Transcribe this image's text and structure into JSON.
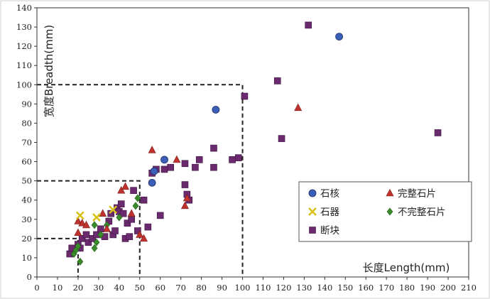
{
  "chart_data": {
    "type": "scatter",
    "title": "",
    "xlabel": "长度Length(mm)",
    "ylabel": "宽度Breadth(mm)",
    "xlim": [
      0,
      210
    ],
    "ylim": [
      0,
      140
    ],
    "x_ticks": [
      0,
      10,
      20,
      30,
      40,
      50,
      60,
      70,
      80,
      90,
      100,
      110,
      120,
      130,
      140,
      150,
      160,
      170,
      180,
      190,
      200,
      210
    ],
    "y_ticks": [
      0,
      10,
      20,
      30,
      40,
      50,
      60,
      70,
      80,
      90,
      100,
      110,
      120,
      130,
      140
    ],
    "grid": false,
    "legend_position": "lower-right",
    "reference_boxes": [
      {
        "x_max": 20,
        "y_max": 20
      },
      {
        "x_max": 50,
        "y_max": 50
      },
      {
        "x_max": 100,
        "y_max": 100
      }
    ],
    "series": [
      {
        "name": "石核",
        "marker": "circle",
        "color": "#3b5fb8",
        "points": [
          [
            87,
            87
          ],
          [
            147,
            125
          ],
          [
            56,
            49
          ],
          [
            62,
            61
          ],
          [
            57,
            55
          ]
        ]
      },
      {
        "name": "完整石片",
        "marker": "triangle",
        "color": "#c0322d",
        "points": [
          [
            20,
            29
          ],
          [
            22,
            28
          ],
          [
            24,
            27
          ],
          [
            20,
            23
          ],
          [
            32,
            33
          ],
          [
            34,
            25
          ],
          [
            41,
            45
          ],
          [
            43,
            47
          ],
          [
            46,
            33
          ],
          [
            50,
            22
          ],
          [
            52,
            20
          ],
          [
            56,
            66
          ],
          [
            68,
            61
          ],
          [
            72,
            37
          ],
          [
            73,
            41
          ],
          [
            127,
            88
          ]
        ]
      },
      {
        "name": "石器",
        "marker": "x",
        "color": "#d8c21a",
        "points": [
          [
            21,
            32
          ],
          [
            29,
            31
          ],
          [
            37,
            35
          ]
        ]
      },
      {
        "name": "不完整石片",
        "marker": "diamond",
        "color": "#3a8c2a",
        "points": [
          [
            18,
            12
          ],
          [
            19,
            14
          ],
          [
            20,
            16
          ],
          [
            21,
            8
          ],
          [
            28,
            15
          ],
          [
            28,
            27
          ],
          [
            29,
            18
          ],
          [
            31,
            22
          ],
          [
            34,
            27
          ],
          [
            40,
            31
          ],
          [
            48,
            37
          ],
          [
            49,
            41
          ]
        ]
      },
      {
        "name": "断块",
        "marker": "square",
        "color": "#6b2a6e",
        "points": [
          [
            16,
            12
          ],
          [
            17,
            15
          ],
          [
            20,
            17
          ],
          [
            21,
            15
          ],
          [
            22,
            20
          ],
          [
            24,
            22
          ],
          [
            25,
            18
          ],
          [
            27,
            20
          ],
          [
            29,
            22
          ],
          [
            31,
            25
          ],
          [
            33,
            21
          ],
          [
            35,
            29
          ],
          [
            36,
            33
          ],
          [
            37,
            22
          ],
          [
            38,
            24
          ],
          [
            39,
            36
          ],
          [
            40,
            34
          ],
          [
            41,
            38
          ],
          [
            42,
            33
          ],
          [
            43,
            20
          ],
          [
            44,
            28
          ],
          [
            45,
            21
          ],
          [
            46,
            30
          ],
          [
            47,
            45
          ],
          [
            49,
            24
          ],
          [
            52,
            40
          ],
          [
            54,
            26
          ],
          [
            56,
            54
          ],
          [
            58,
            56
          ],
          [
            60,
            32
          ],
          [
            62,
            56
          ],
          [
            65,
            57
          ],
          [
            72,
            59
          ],
          [
            72,
            48
          ],
          [
            73,
            43
          ],
          [
            74,
            40
          ],
          [
            77,
            57
          ],
          [
            79,
            61
          ],
          [
            86,
            57
          ],
          [
            86,
            67
          ],
          [
            95,
            61
          ],
          [
            98,
            62
          ],
          [
            101,
            94
          ],
          [
            117,
            102
          ],
          [
            119,
            72
          ],
          [
            132,
            131
          ],
          [
            195,
            75
          ]
        ]
      }
    ]
  }
}
